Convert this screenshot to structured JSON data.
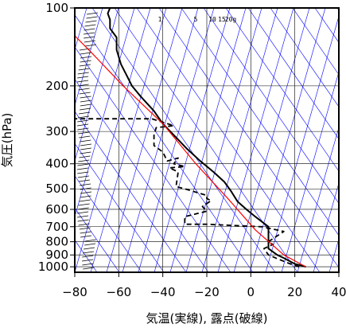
{
  "chart_data": {
    "type": "line",
    "title": "",
    "xlabel": "気温(実線), 露点(破線)",
    "ylabel": "気圧(hPa)",
    "xlim": [
      -80,
      40
    ],
    "ylim": [
      1050,
      100
    ],
    "y_scale": "log",
    "grid": true,
    "x_ticks": [
      "−80",
      "−60",
      "−40",
      "−20",
      "0",
      "20",
      "40"
    ],
    "y_ticks": [
      "100",
      "200",
      "300",
      "400",
      "500",
      "600",
      "700",
      "800",
      "900",
      "1000"
    ],
    "mixing_ratio_labels": [
      "1",
      "5",
      "10",
      "15",
      "20g"
    ],
    "colors": {
      "temperature": "#000000",
      "dewpoint": "#000000",
      "parcel": "#ff0000",
      "background_lines": "#0000ff",
      "wind_barbs": "#000000"
    },
    "series": [
      {
        "style": "solid",
        "x": [
          25,
          20,
          15,
          12,
          8,
          8,
          2,
          -2,
          -6,
          -9,
          -12,
          -17,
          -23,
          -29,
          -35,
          -40,
          -44,
          -50,
          -54,
          -56,
          -59,
          -61,
          -61,
          -64,
          -64,
          -65,
          -64,
          -64
        ],
        "y": [
          1000,
          975,
          925,
          900,
          850,
          700,
          640,
          600,
          560,
          510,
          470,
          430,
          390,
          350,
          310,
          280,
          250,
          220,
          200,
          185,
          165,
          145,
          130,
          120,
          111,
          105,
          100,
          100
        ]
      },
      {
        "style": "dashed",
        "x": [
          22,
          18,
          12,
          8,
          6,
          10,
          8,
          15,
          5,
          -20,
          -30,
          -30,
          -20,
          -22,
          -18,
          -20,
          -20,
          -25,
          -30,
          -34,
          -33,
          -37,
          -30,
          -35,
          -33,
          -38,
          -40,
          -44,
          -44,
          -43,
          -35,
          -45,
          -52,
          -80
        ],
        "y": [
          1000,
          975,
          930,
          900,
          850,
          820,
          800,
          730,
          700,
          685,
          685,
          640,
          610,
          585,
          555,
          545,
          530,
          515,
          500,
          490,
          430,
          415,
          410,
          400,
          380,
          390,
          360,
          340,
          310,
          290,
          285,
          268,
          268,
          268
        ]
      },
      {
        "style": "solid",
        "x": [
          25,
          15,
          2,
          -10,
          -25,
          -40,
          -58,
          -72,
          -80
        ],
        "y": [
          1000,
          900,
          720,
          550,
          400,
          280,
          200,
          150,
          128
        ]
      }
    ]
  }
}
